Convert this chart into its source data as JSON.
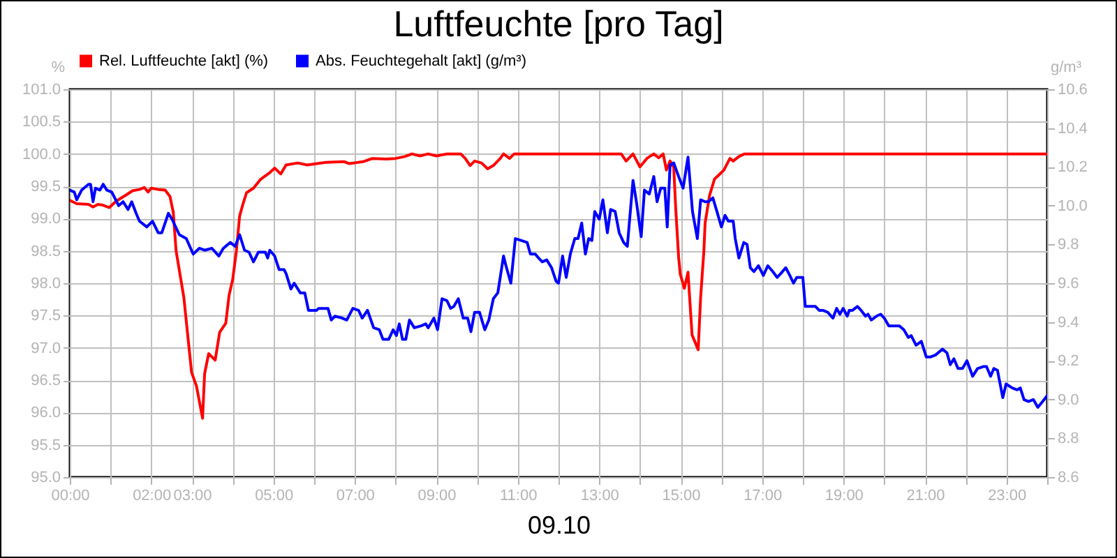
{
  "chart_data": {
    "type": "line",
    "title": "Luftfeuchte [pro Tag]",
    "xlabel": "09.10",
    "ylabel": "%",
    "y2label": "g/m³",
    "xlim": [
      0,
      24
    ],
    "xticks": [
      {
        "value": 0,
        "label": "00:00"
      },
      {
        "value": 1,
        "label": null
      },
      {
        "value": 2,
        "label": "02:00"
      },
      {
        "value": 3,
        "label": "03:00"
      },
      {
        "value": 4,
        "label": null
      },
      {
        "value": 5,
        "label": "05:00"
      },
      {
        "value": 6,
        "label": null
      },
      {
        "value": 7,
        "label": "07:00"
      },
      {
        "value": 8,
        "label": null
      },
      {
        "value": 9,
        "label": "09:00"
      },
      {
        "value": 10,
        "label": null
      },
      {
        "value": 11,
        "label": "11:00"
      },
      {
        "value": 12,
        "label": null
      },
      {
        "value": 13,
        "label": "13:00"
      },
      {
        "value": 14,
        "label": null
      },
      {
        "value": 15,
        "label": "15:00"
      },
      {
        "value": 16,
        "label": null
      },
      {
        "value": 17,
        "label": "17:00"
      },
      {
        "value": 18,
        "label": null
      },
      {
        "value": 19,
        "label": "19:00"
      },
      {
        "value": 20,
        "label": null
      },
      {
        "value": 21,
        "label": "21:00"
      },
      {
        "value": 22,
        "label": null
      },
      {
        "value": 23,
        "label": "23:00"
      },
      {
        "value": 24,
        "label": null
      }
    ],
    "ylim": [
      95,
      101
    ],
    "yticks": [
      {
        "value": 95,
        "label": "95.0"
      },
      95.5,
      {
        "value": 96,
        "label": "96.0"
      },
      96.5,
      {
        "value": 97,
        "label": "97.0"
      },
      97.5,
      {
        "value": 98,
        "label": "98.0"
      },
      98.5,
      {
        "value": 99,
        "label": "99.0"
      },
      99.5,
      {
        "value": 100,
        "label": "100.0"
      },
      100.5,
      {
        "value": 101,
        "label": "101.0"
      }
    ],
    "y2lim": [
      8.6,
      10.6
    ],
    "y2ticks": [
      8.6,
      8.8,
      {
        "value": 9,
        "label": "9.0"
      },
      9.2,
      9.4,
      9.6,
      9.8,
      {
        "value": 10,
        "label": "10.0"
      },
      10.2,
      10.4,
      10.6
    ],
    "grid": true,
    "legend": "top left",
    "line_style": "solid",
    "series": [
      {
        "name": "Rel. Luftfeuchte [akt] (%)",
        "color": "#ff0000",
        "x": [
          0,
          0.17,
          0.46,
          0.57,
          0.69,
          0.8,
          0.97,
          1.14,
          1.37,
          1.54,
          1.71,
          1.83,
          1.92,
          2.0,
          2.17,
          2.34,
          2.46,
          2.54,
          2.61,
          2.8,
          2.99,
          3.11,
          3.26,
          3.31,
          3.41,
          3.57,
          3.68,
          3.83,
          3.91,
          4.0,
          4.09,
          4.17,
          4.25,
          4.34,
          4.51,
          4.69,
          4.91,
          5.03,
          5.18,
          5.31,
          5.6,
          5.83,
          6.29,
          6.74,
          6.86,
          7.2,
          7.43,
          7.77,
          8.0,
          8.23,
          8.4,
          8.6,
          8.8,
          9.0,
          9.26,
          9.6,
          9.71,
          9.83,
          9.94,
          10.11,
          10.26,
          10.4,
          10.57,
          10.65,
          10.8,
          10.91,
          11.5,
          12.5,
          13.54,
          13.66,
          13.83,
          14.0,
          14.17,
          14.34,
          14.46,
          14.57,
          14.65,
          14.74,
          14.83,
          14.88,
          14.95,
          14.99,
          15.09,
          15.18,
          15.28,
          15.43,
          15.49,
          15.57,
          15.6,
          15.71,
          15.83,
          15.98,
          16.06,
          16.21,
          16.29,
          16.43,
          16.57,
          16.86,
          18,
          20,
          22,
          24
        ],
        "values": [
          99.28,
          99.23,
          99.22,
          99.18,
          99.22,
          99.21,
          99.17,
          99.27,
          99.36,
          99.43,
          99.45,
          99.48,
          99.41,
          99.47,
          99.45,
          99.44,
          99.34,
          99.1,
          98.5,
          97.78,
          96.62,
          96.41,
          95.91,
          96.6,
          96.91,
          96.81,
          97.24,
          97.38,
          97.81,
          98.06,
          98.5,
          99.04,
          99.22,
          99.4,
          99.47,
          99.61,
          99.71,
          99.78,
          99.69,
          99.83,
          99.86,
          99.83,
          99.87,
          99.88,
          99.85,
          99.88,
          99.93,
          99.92,
          99.93,
          99.96,
          100,
          99.97,
          100,
          99.97,
          100,
          100,
          99.93,
          99.82,
          99.89,
          99.86,
          99.77,
          99.82,
          99.93,
          100,
          99.93,
          100,
          100,
          100,
          100,
          99.89,
          100,
          99.8,
          99.93,
          100,
          99.94,
          100,
          99.75,
          99.89,
          99.79,
          99.14,
          98.4,
          98.14,
          97.92,
          98.17,
          97.2,
          96.97,
          97.78,
          98.5,
          98.93,
          99.36,
          99.61,
          99.7,
          99.75,
          99.93,
          99.89,
          99.96,
          100,
          100,
          100,
          100,
          100,
          100
        ]
      },
      {
        "name": "Abs. Feuchtegehalt [akt] (g/m³)",
        "color": "#0000ff",
        "axis": "y2",
        "x": [
          0,
          0.11,
          0.17,
          0.29,
          0.46,
          0.51,
          0.57,
          0.63,
          0.74,
          0.82,
          0.91,
          1.03,
          1.2,
          1.31,
          1.43,
          1.52,
          1.63,
          1.71,
          1.89,
          2.03,
          2.17,
          2.26,
          2.42,
          2.51,
          2.69,
          2.86,
          3.03,
          3.18,
          3.31,
          3.49,
          3.66,
          3.77,
          3.94,
          4.06,
          4.17,
          4.29,
          4.4,
          4.51,
          4.63,
          4.8,
          4.86,
          4.91,
          5.03,
          5.14,
          5.26,
          5.31,
          5.43,
          5.51,
          5.66,
          5.77,
          5.86,
          6.06,
          6.11,
          6.34,
          6.42,
          6.51,
          6.69,
          6.8,
          6.95,
          7.09,
          7.18,
          7.31,
          7.46,
          7.6,
          7.69,
          7.83,
          7.94,
          8.02,
          8.09,
          8.17,
          8.25,
          8.34,
          8.46,
          8.63,
          8.74,
          8.8,
          8.94,
          9.03,
          9.14,
          9.26,
          9.35,
          9.43,
          9.54,
          9.66,
          9.77,
          9.85,
          9.94,
          10.06,
          10.19,
          10.29,
          10.4,
          10.51,
          10.65,
          10.71,
          10.83,
          10.94,
          11.09,
          11.23,
          11.31,
          11.43,
          11.51,
          11.6,
          11.71,
          11.83,
          11.94,
          12.0,
          12.1,
          12.19,
          12.29,
          12.4,
          12.48,
          12.57,
          12.66,
          12.74,
          12.82,
          12.89,
          13.0,
          13.09,
          13.2,
          13.28,
          13.39,
          13.49,
          13.6,
          13.69,
          13.83,
          13.92,
          14.03,
          14.11,
          14.23,
          14.34,
          14.42,
          14.51,
          14.61,
          14.67,
          14.74,
          14.83,
          14.95,
          15.06,
          15.18,
          15.29,
          15.41,
          15.49,
          15.6,
          15.68,
          15.79,
          15.89,
          16.0,
          16.09,
          16.17,
          16.29,
          16.34,
          16.43,
          16.55,
          16.63,
          16.71,
          16.8,
          16.91,
          17.03,
          17.14,
          17.26,
          17.37,
          17.46,
          17.58,
          17.68,
          17.77,
          17.85,
          18.0,
          18.06,
          18.17,
          18.31,
          18.4,
          18.49,
          18.61,
          18.74,
          18.83,
          18.91,
          18.99,
          19.09,
          19.14,
          19.22,
          19.34,
          19.43,
          19.54,
          19.6,
          19.68,
          19.81,
          19.91,
          20.0,
          20.11,
          20.23,
          20.37,
          20.48,
          20.59,
          20.66,
          20.78,
          20.91,
          21.03,
          21.14,
          21.26,
          21.43,
          21.54,
          21.62,
          21.71,
          21.81,
          21.92,
          22.03,
          22.17,
          22.29,
          22.43,
          22.51,
          22.61,
          22.69,
          22.78,
          22.91,
          22.99,
          23.14,
          23.26,
          23.34,
          23.43,
          23.54,
          23.66,
          23.77,
          23.89,
          24.0
        ],
        "values": [
          10.08,
          10.07,
          10.03,
          10.08,
          10.11,
          10.11,
          10.02,
          10.09,
          10.08,
          10.11,
          10.08,
          10.07,
          10.0,
          10.02,
          9.98,
          10.02,
          9.96,
          9.92,
          9.89,
          9.92,
          9.86,
          9.86,
          9.96,
          9.93,
          9.85,
          9.83,
          9.75,
          9.78,
          9.77,
          9.78,
          9.74,
          9.78,
          9.81,
          9.79,
          9.85,
          9.77,
          9.76,
          9.71,
          9.76,
          9.76,
          9.73,
          9.77,
          9.74,
          9.67,
          9.67,
          9.65,
          9.57,
          9.6,
          9.55,
          9.55,
          9.46,
          9.46,
          9.47,
          9.47,
          9.41,
          9.43,
          9.42,
          9.41,
          9.47,
          9.46,
          9.42,
          9.46,
          9.37,
          9.36,
          9.31,
          9.31,
          9.36,
          9.33,
          9.39,
          9.31,
          9.31,
          9.41,
          9.37,
          9.38,
          9.39,
          9.37,
          9.42,
          9.36,
          9.52,
          9.51,
          9.47,
          9.48,
          9.52,
          9.42,
          9.42,
          9.35,
          9.45,
          9.45,
          9.36,
          9.41,
          9.52,
          9.55,
          9.74,
          9.69,
          9.6,
          9.83,
          9.82,
          9.81,
          9.75,
          9.75,
          9.73,
          9.71,
          9.72,
          9.68,
          9.61,
          9.6,
          9.74,
          9.63,
          9.75,
          9.83,
          9.83,
          9.91,
          9.75,
          9.83,
          9.82,
          9.97,
          9.93,
          10.03,
          9.86,
          9.98,
          9.97,
          9.86,
          9.81,
          9.79,
          10.13,
          10.01,
          9.84,
          10.08,
          10.06,
          10.15,
          10.02,
          10.09,
          10.09,
          9.89,
          10.21,
          10.22,
          10.15,
          10.09,
          10.25,
          9.97,
          9.83,
          10.03,
          10.02,
          10.02,
          10.04,
          9.97,
          9.89,
          9.95,
          9.92,
          9.92,
          9.83,
          9.73,
          9.81,
          9.8,
          9.68,
          9.66,
          9.69,
          9.64,
          9.69,
          9.66,
          9.63,
          9.65,
          9.68,
          9.64,
          9.6,
          9.63,
          9.63,
          9.48,
          9.48,
          9.48,
          9.46,
          9.46,
          9.45,
          9.42,
          9.47,
          9.44,
          9.47,
          9.43,
          9.46,
          9.46,
          9.48,
          9.46,
          9.43,
          9.44,
          9.41,
          9.43,
          9.44,
          9.42,
          9.38,
          9.38,
          9.38,
          9.36,
          9.32,
          9.33,
          9.28,
          9.3,
          9.22,
          9.22,
          9.23,
          9.26,
          9.24,
          9.18,
          9.21,
          9.16,
          9.16,
          9.2,
          9.12,
          9.16,
          9.17,
          9.17,
          9.12,
          9.16,
          9.15,
          9.01,
          9.08,
          9.06,
          9.05,
          9.06,
          9.0,
          8.99,
          9.0,
          8.96,
          8.99,
          9.02
        ]
      }
    ]
  }
}
